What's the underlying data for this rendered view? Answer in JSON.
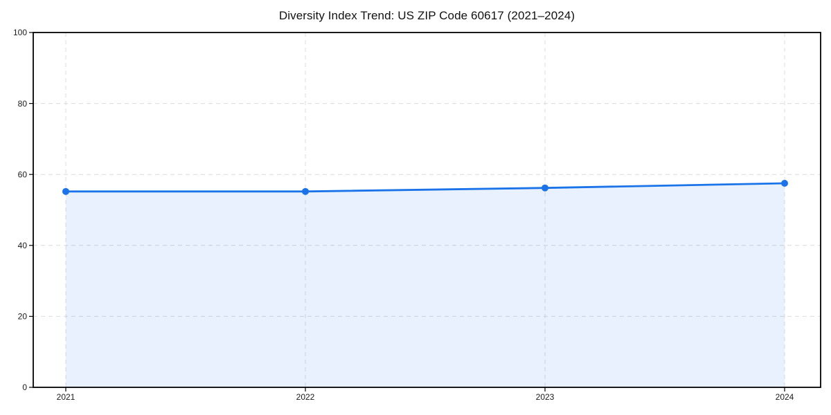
{
  "chart_data": {
    "type": "area",
    "title": "Diversity Index Trend: US ZIP Code 60617 (2021–2024)",
    "x": [
      2021,
      2022,
      2023,
      2024
    ],
    "series": [
      {
        "name": "Diversity Index",
        "values": [
          55.2,
          55.2,
          56.2,
          57.5
        ]
      }
    ],
    "xlabel": "",
    "ylabel": "",
    "ylim": [
      0,
      100
    ],
    "yticks": [
      0,
      20,
      40,
      60,
      80,
      100
    ],
    "xticks": [
      "2021",
      "2022",
      "2023",
      "2024"
    ],
    "grid": "dashed, both axes",
    "legend_position": "none",
    "line_color": "#1a73e8",
    "marker_color": "#1a73e8",
    "fill_color": "#1a73e8",
    "fill_opacity": 0.1,
    "grid_color": "#dcdcdc",
    "axis_color": "#000000",
    "tick_label_color": "#1a1a1a",
    "background_color": "#ffffff"
  }
}
